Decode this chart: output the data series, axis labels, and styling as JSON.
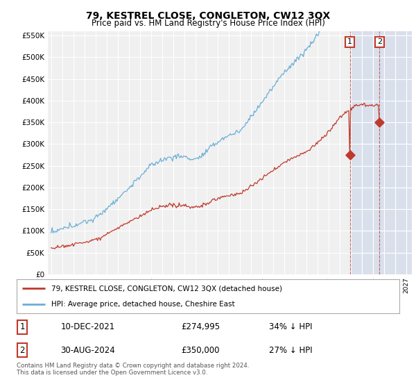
{
  "title": "79, KESTREL CLOSE, CONGLETON, CW12 3QX",
  "subtitle": "Price paid vs. HM Land Registry's House Price Index (HPI)",
  "hpi_label": "HPI: Average price, detached house, Cheshire East",
  "price_label": "79, KESTREL CLOSE, CONGLETON, CW12 3QX (detached house)",
  "legend_entry1_date": "10-DEC-2021",
  "legend_entry1_price": "£274,995",
  "legend_entry1_note": "34% ↓ HPI",
  "legend_entry2_date": "30-AUG-2024",
  "legend_entry2_price": "£350,000",
  "legend_entry2_note": "27% ↓ HPI",
  "footer": "Contains HM Land Registry data © Crown copyright and database right 2024.\nThis data is licensed under the Open Government Licence v3.0.",
  "ylim": [
    0,
    560000
  ],
  "hpi_color": "#6baed6",
  "price_color": "#c0392b",
  "dot_color": "#c0392b",
  "background_plot": "#f0f0f0",
  "background_fig": "#ffffff",
  "grid_color": "#ffffff",
  "shade_color": "#ccd6e8",
  "x_start_year": 1995,
  "x_end_year": 2027,
  "t1_year": 2021.92,
  "t2_year": 2024.58,
  "t1_price": 274995,
  "t2_price": 350000
}
